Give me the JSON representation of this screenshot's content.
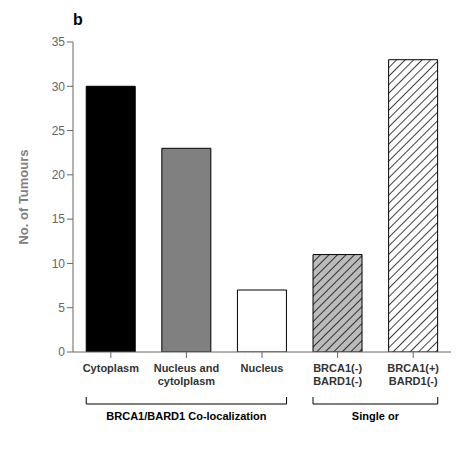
{
  "chart_data": {
    "type": "bar",
    "title": "b",
    "ylabel": "No. of Tumours",
    "categories": [
      "Cytoplasm",
      "Nucleus and\ncytolplasm",
      "Nucleus",
      "BRCA1(-)\nBARD1(-)",
      "BRCA1(+)\nBARD1(-)"
    ],
    "values": [
      30,
      23,
      7,
      11,
      33
    ],
    "colors": [
      "#000000",
      "#808080",
      "#ffffff",
      "#bbbbbb",
      "#ffffff"
    ],
    "ylim": [
      0,
      35
    ],
    "yticks": [
      0,
      5,
      10,
      15,
      20,
      25,
      30,
      35
    ],
    "grid": false,
    "annotations": [
      "BRCA1/BARD1 Co-localization",
      "Single or"
    ]
  }
}
